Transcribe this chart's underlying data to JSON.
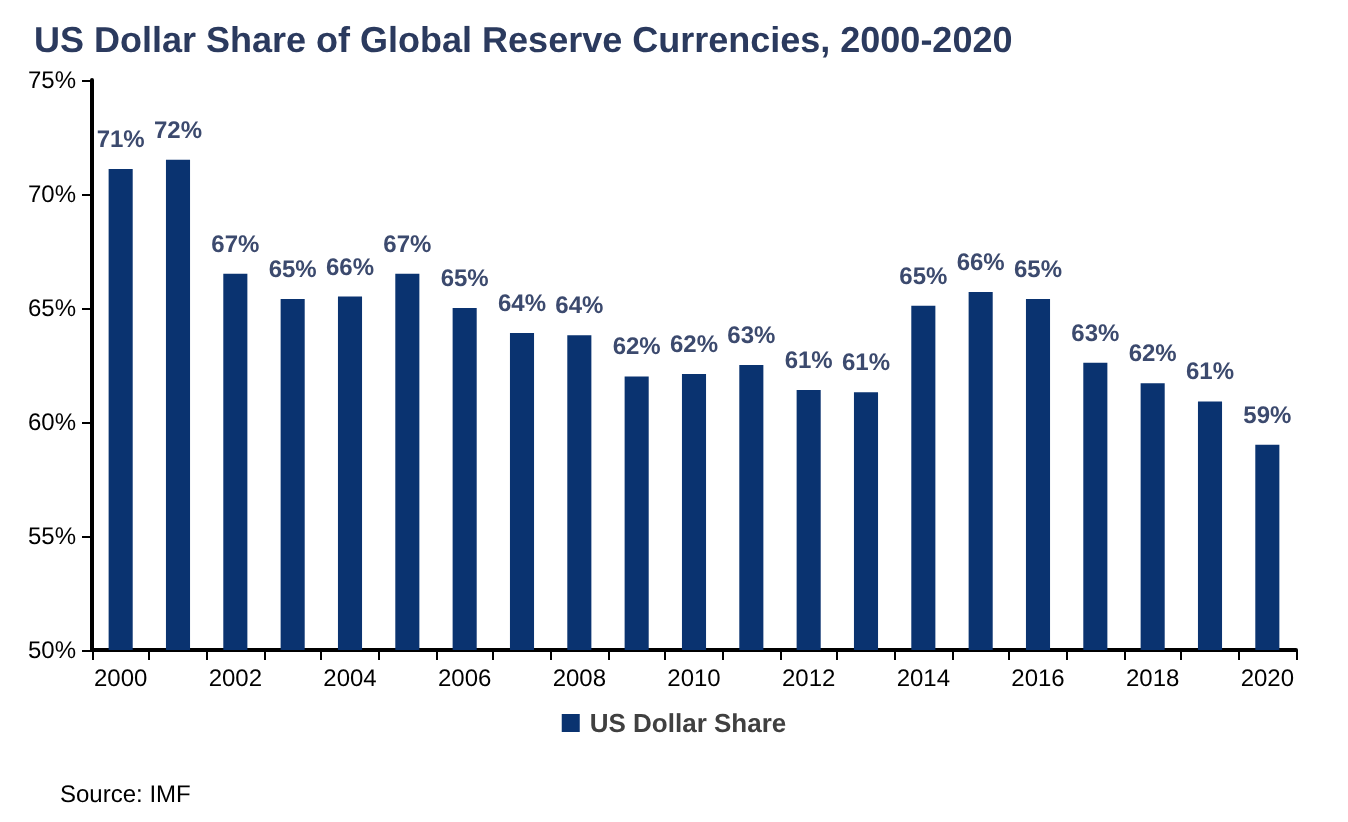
{
  "chart_data": {
    "type": "bar",
    "title": "US Dollar Share of Global Reserve Currencies, 2000-2020",
    "categories": [
      "2000",
      null,
      "2002",
      null,
      "2004",
      null,
      "2006",
      null,
      "2008",
      null,
      "2010",
      null,
      "2012",
      null,
      "2014",
      null,
      "2016",
      null,
      "2018",
      null,
      "2020"
    ],
    "series": [
      {
        "name": "US Dollar Share",
        "color": "#0a3370",
        "values": [
          71.1,
          71.5,
          66.5,
          65.4,
          65.5,
          66.5,
          65.0,
          63.9,
          63.8,
          62.0,
          62.1,
          62.5,
          61.4,
          61.3,
          65.1,
          65.7,
          65.4,
          62.6,
          61.7,
          60.9,
          59.0
        ],
        "value_labels": [
          "71%",
          "72%",
          "67%",
          "65%",
          "66%",
          "67%",
          "65%",
          "64%",
          "64%",
          "62%",
          "62%",
          "63%",
          "61%",
          "61%",
          "65%",
          "66%",
          "65%",
          "63%",
          "62%",
          "61%",
          "59%"
        ]
      }
    ],
    "ylim": [
      50,
      75
    ],
    "yticks": [
      {
        "value": 50,
        "label": "50%"
      },
      {
        "value": 55,
        "label": "55%"
      },
      {
        "value": 60,
        "label": "60%"
      },
      {
        "value": 65,
        "label": "65%"
      },
      {
        "value": 70,
        "label": "70%"
      },
      {
        "value": 75,
        "label": "75%"
      }
    ],
    "grid": false,
    "legend": "bottom",
    "annotations": [
      "Source: IMF"
    ]
  }
}
